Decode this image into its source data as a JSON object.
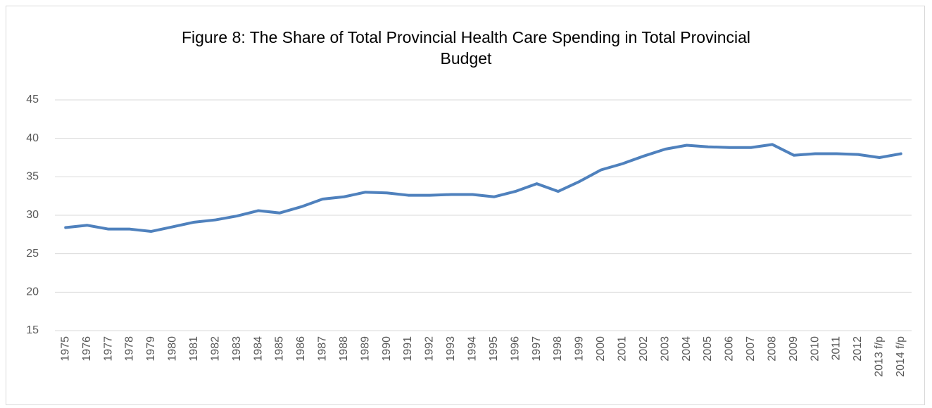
{
  "chart_data": {
    "type": "line",
    "title": "Figure 8: The Share of Total Provincial Health Care Spending in Total Provincial Budget",
    "categories": [
      "1975",
      "1976",
      "1977",
      "1978",
      "1979",
      "1980",
      "1981",
      "1982",
      "1983",
      "1984",
      "1985",
      "1986",
      "1987",
      "1988",
      "1989",
      "1990",
      "1991",
      "1992",
      "1993",
      "1994",
      "1995",
      "1996",
      "1997",
      "1998",
      "1999",
      "2000",
      "2001",
      "2002",
      "2003",
      "2004",
      "2005",
      "2006",
      "2007",
      "2008",
      "2009",
      "2010",
      "2011",
      "2012",
      "2013 f/p",
      "2014 f/p"
    ],
    "values": [
      28.4,
      28.7,
      28.2,
      28.2,
      27.9,
      28.5,
      29.1,
      29.4,
      29.9,
      30.6,
      30.3,
      31.1,
      32.1,
      32.4,
      33.0,
      32.9,
      32.6,
      32.6,
      32.7,
      32.7,
      32.4,
      33.1,
      34.1,
      33.1,
      34.4,
      35.9,
      36.7,
      37.7,
      38.6,
      39.1,
      38.9,
      38.8,
      38.8,
      39.2,
      37.8,
      38.0,
      38.0,
      37.9,
      37.5,
      38.0
    ],
    "color": "#4f81bd",
    "ylim": [
      15,
      45
    ],
    "yticks": [
      15,
      20,
      25,
      30,
      35,
      40,
      45
    ],
    "grid": true
  }
}
